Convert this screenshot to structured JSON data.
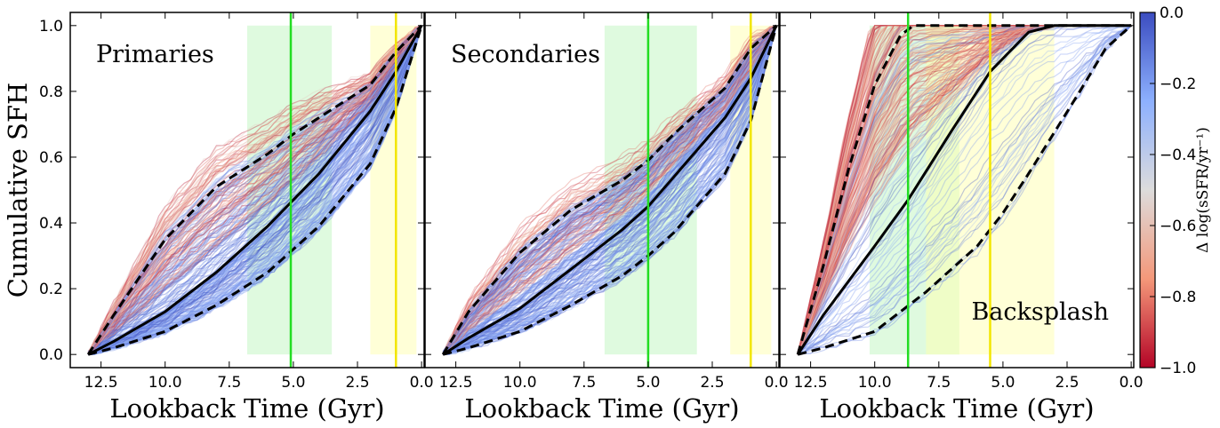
{
  "chart_data": {
    "type": "line",
    "ylabel": "Cumulative SFH",
    "ylim": [
      0.0,
      1.0
    ],
    "yticks": [
      "0.0",
      "0.2",
      "0.4",
      "0.6",
      "0.8",
      "1.0"
    ],
    "colormap": {
      "name": "coolwarm_r",
      "label": "Δ log(sSFR/yr⁻¹)",
      "range": [
        -1.0,
        0.0
      ],
      "ticks": [
        "0.0",
        "−0.2",
        "−0.4",
        "−0.6",
        "−0.8",
        "−1.0"
      ],
      "tick_values": [
        0.0,
        -0.2,
        -0.4,
        -0.6,
        -0.8,
        -1.0
      ],
      "colors": [
        "#3b4cc0",
        "#8db0fe",
        "#dddcdc",
        "#f4987a",
        "#b40426"
      ]
    },
    "panels": [
      {
        "title": "Primaries",
        "title_position": "top-left",
        "xlabel": "Lookback Time (Gyr)",
        "xlim": [
          13.7,
          -0.1
        ],
        "xticks": [
          "12.5",
          "10.0",
          "7.5",
          "5.0",
          "2.5",
          "0.0"
        ],
        "xtick_values": [
          12.5,
          10.0,
          7.5,
          5.0,
          2.5,
          0.0
        ],
        "green_line": 5.1,
        "yellow_line": 1.0,
        "green_band": [
          6.8,
          3.5
        ],
        "yellow_band": [
          2.0,
          0.2
        ],
        "median": {
          "x": [
            13.0,
            12.0,
            10.0,
            8.0,
            6.0,
            5.0,
            4.0,
            2.0,
            1.0,
            0.0
          ],
          "y": [
            0.0,
            0.04,
            0.13,
            0.25,
            0.39,
            0.47,
            0.55,
            0.74,
            0.86,
            1.0
          ]
        },
        "p16": {
          "x": [
            13.0,
            12.0,
            10.0,
            8.0,
            6.0,
            5.0,
            4.0,
            2.0,
            1.0,
            0.0
          ],
          "y": [
            0.0,
            0.02,
            0.07,
            0.15,
            0.25,
            0.32,
            0.39,
            0.58,
            0.75,
            1.0
          ]
        },
        "p84": {
          "x": [
            13.0,
            12.0,
            10.0,
            8.0,
            6.0,
            5.0,
            4.0,
            2.0,
            1.0,
            0.0
          ],
          "y": [
            0.0,
            0.12,
            0.35,
            0.51,
            0.61,
            0.67,
            0.72,
            0.82,
            0.92,
            1.0
          ]
        }
      },
      {
        "title": "Secondaries",
        "title_position": "top-left",
        "xlabel": "Lookback Time (Gyr)",
        "xlim": [
          13.7,
          -0.1
        ],
        "xticks": [
          "12.5",
          "10.0",
          "7.5",
          "5.0",
          "2.5",
          "0.0"
        ],
        "xtick_values": [
          12.5,
          10.0,
          7.5,
          5.0,
          2.5,
          0.0
        ],
        "green_line": 5.0,
        "yellow_line": 1.0,
        "green_band": [
          6.7,
          3.1
        ],
        "yellow_band": [
          1.8,
          0.2
        ],
        "median": {
          "x": [
            13.0,
            12.0,
            10.0,
            8.0,
            6.0,
            5.0,
            4.0,
            2.0,
            1.0,
            0.0
          ],
          "y": [
            0.0,
            0.05,
            0.14,
            0.26,
            0.38,
            0.45,
            0.54,
            0.72,
            0.84,
            1.0
          ]
        },
        "p16": {
          "x": [
            13.0,
            12.0,
            10.0,
            8.0,
            6.0,
            5.0,
            4.0,
            2.0,
            1.0,
            0.0
          ],
          "y": [
            0.0,
            0.02,
            0.07,
            0.15,
            0.24,
            0.3,
            0.37,
            0.55,
            0.71,
            1.0
          ]
        },
        "p84": {
          "x": [
            13.0,
            12.0,
            10.0,
            8.0,
            6.0,
            5.0,
            4.0,
            2.0,
            1.0,
            0.0
          ],
          "y": [
            0.0,
            0.13,
            0.31,
            0.44,
            0.53,
            0.59,
            0.67,
            0.81,
            0.93,
            1.0
          ]
        }
      },
      {
        "title": "Backsplash",
        "title_position": "bottom-right",
        "xlabel": "Lookback Time (Gyr)",
        "xlim": [
          13.7,
          -0.1
        ],
        "xticks": [
          "12.5",
          "10.0",
          "7.5",
          "5.0",
          "2.5",
          "0.0"
        ],
        "xtick_values": [
          12.5,
          10.0,
          7.5,
          5.0,
          2.5,
          0.0
        ],
        "green_line": 8.7,
        "yellow_line": 5.5,
        "green_band": [
          10.2,
          6.7
        ],
        "yellow_band": [
          8.0,
          3.0
        ],
        "median": {
          "x": [
            13.0,
            12.0,
            10.0,
            8.7,
            7.0,
            5.5,
            4.0,
            3.0,
            0.0
          ],
          "y": [
            0.0,
            0.12,
            0.33,
            0.47,
            0.68,
            0.86,
            0.98,
            1.0,
            1.0
          ]
        },
        "p16": {
          "x": [
            13.0,
            12.0,
            10.0,
            8.0,
            6.0,
            5.0,
            4.0,
            2.0,
            1.0,
            0.0
          ],
          "y": [
            0.0,
            0.02,
            0.07,
            0.19,
            0.33,
            0.43,
            0.55,
            0.8,
            0.93,
            1.0
          ]
        },
        "p84": {
          "x": [
            13.0,
            12.0,
            11.0,
            10.0,
            9.0,
            8.5,
            8.0,
            0.0
          ],
          "y": [
            0.0,
            0.27,
            0.57,
            0.82,
            0.97,
            1.0,
            1.0,
            1.0
          ]
        }
      }
    ]
  }
}
